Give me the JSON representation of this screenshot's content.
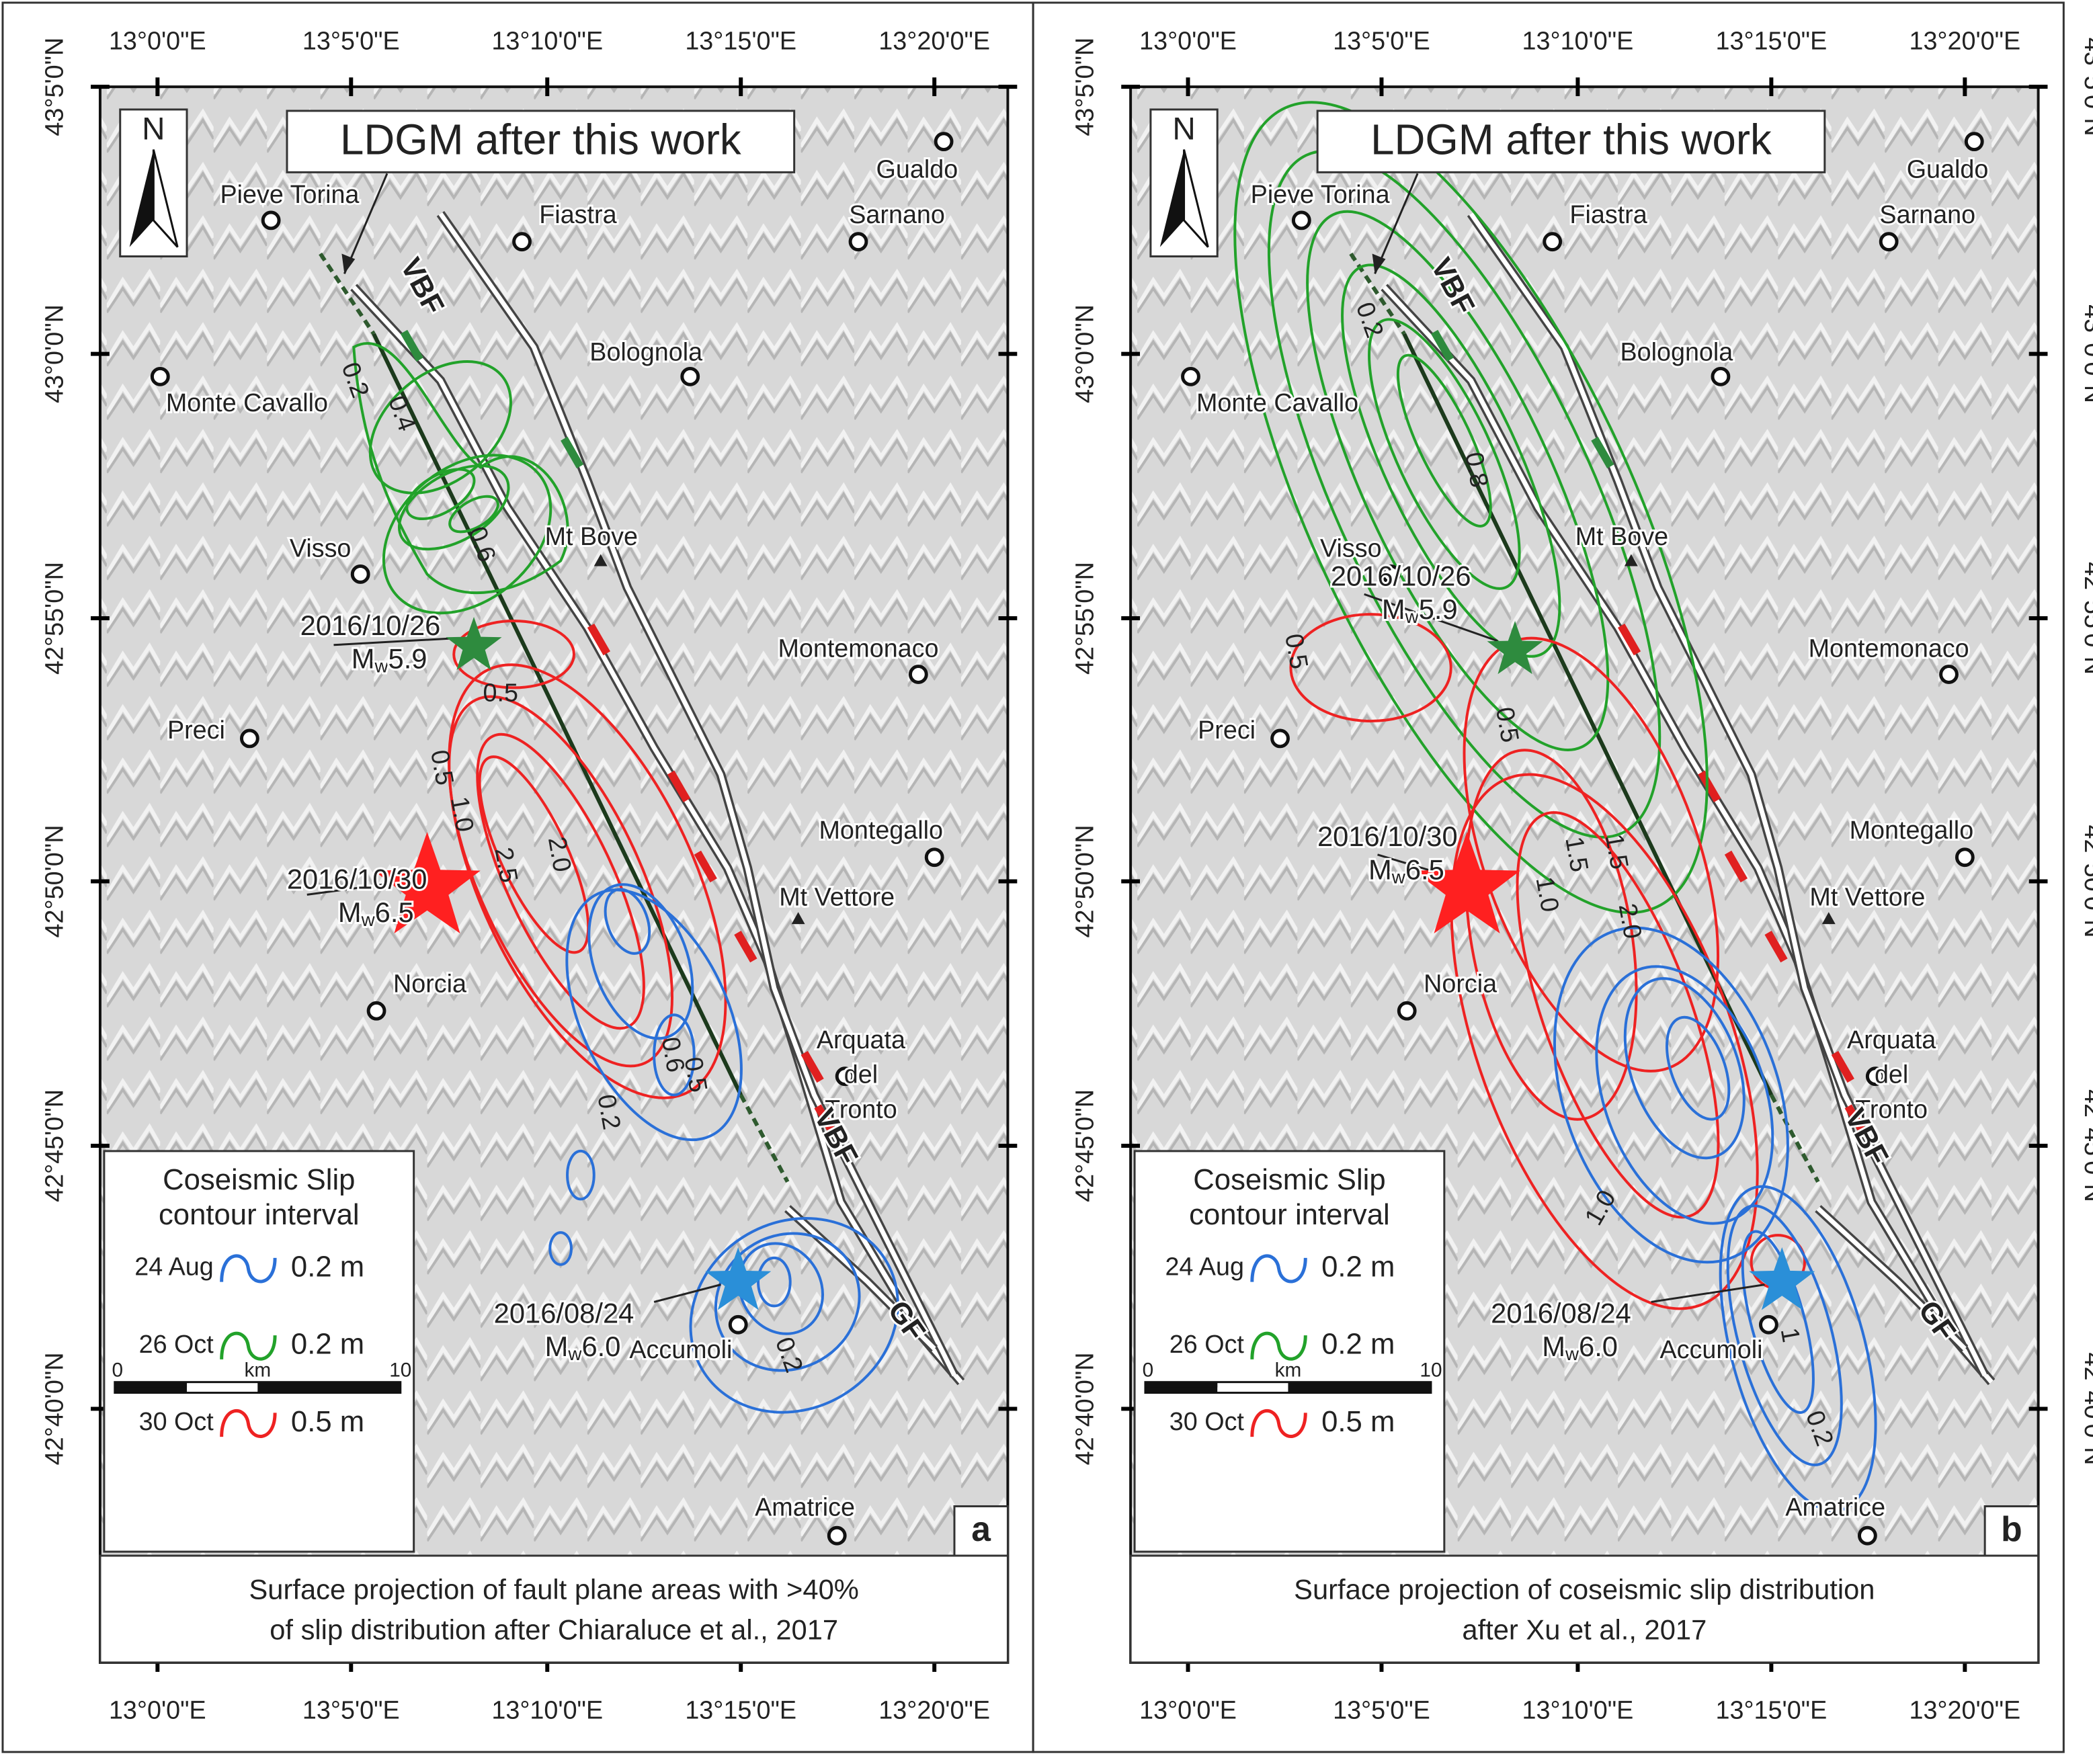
{
  "axes": {
    "lon_labels": [
      "13°0'0\"E",
      "13°5'0\"E",
      "13°10'0\"E",
      "13°15'0\"E",
      "13°20'0\"E"
    ],
    "lat_labels": [
      "43°5'0\"N",
      "43°0'0\"N",
      "42°55'0\"N",
      "42°50'0\"N",
      "42°45'0\"N",
      "42°40'0\"N"
    ]
  },
  "panels": [
    {
      "letter": "a",
      "title_box": "LDGM after this work",
      "north": "N",
      "places": [
        "Pieve Torina",
        "Fiastra",
        "Gualdo",
        "Sarnano",
        "Bolognola",
        "Monte Cavallo",
        "Visso",
        "Mt Bove",
        "Montemonaco",
        "Preci",
        "Montegallo",
        "Mt Vettore",
        "Norcia",
        "Amatrice",
        "Accumoli"
      ],
      "arquata": [
        "Arquata",
        "del",
        "Tronto"
      ],
      "faults": [
        "VBF",
        "VBF",
        "GF"
      ],
      "events": [
        {
          "date": "2016/10/26",
          "m": "M",
          "sub": "w",
          "mag": "5.9"
        },
        {
          "date": "2016/10/30",
          "m": "M",
          "sub": "w",
          "mag": "6.5"
        },
        {
          "date": "2016/08/24",
          "m": "M",
          "sub": "w",
          "mag": "6.0"
        }
      ],
      "contour_labels": [
        "0.2",
        "0.4",
        "0.6",
        "0.5",
        "0.5",
        "1.0",
        "2.5",
        "2.0",
        "0.6",
        "0.5",
        "0.2",
        "0.2"
      ],
      "legend": {
        "title": [
          "Coseismic Slip",
          "contour interval"
        ],
        "rows": [
          {
            "date": "24 Aug",
            "interval": "0.2 m"
          },
          {
            "date": "26 Oct",
            "interval": "0.2 m"
          },
          {
            "date": "30 Oct",
            "interval": "0.5 m"
          }
        ]
      },
      "scale": {
        "start": "0",
        "unit": "km",
        "end": "10"
      },
      "caption": [
        "Surface projection of fault plane areas with >40%",
        "of slip distribution after Chiaraluce et al., 2017"
      ]
    },
    {
      "letter": "b",
      "title_box": "LDGM after this work",
      "north": "N",
      "places": [
        "Pieve Torina",
        "Fiastra",
        "Gualdo",
        "Sarnano",
        "Bolognola",
        "Monte Cavallo",
        "Visso",
        "Mt Bove",
        "Montemonaco",
        "Preci",
        "Montegallo",
        "Mt Vettore",
        "Norcia",
        "Amatrice",
        "Accumoli"
      ],
      "arquata": [
        "Arquata",
        "del",
        "Tronto"
      ],
      "faults": [
        "VBF",
        "VBF",
        "GF"
      ],
      "events": [
        {
          "date": "2016/10/26",
          "m": "M",
          "sub": "w",
          "mag": "5.9"
        },
        {
          "date": "2016/10/30",
          "m": "M",
          "sub": "w",
          "mag": "6.5"
        },
        {
          "date": "2016/08/24",
          "m": "M",
          "sub": "w",
          "mag": "6.0"
        }
      ],
      "contour_labels": [
        "0.2",
        "0.8",
        "0.5",
        "0.5",
        "1.5",
        "1.0",
        "1.5",
        "2.0",
        "1.0",
        "1",
        "0.2"
      ],
      "legend": {
        "title": [
          "Coseismic Slip",
          "contour interval"
        ],
        "rows": [
          {
            "date": "24 Aug",
            "interval": "0.2 m"
          },
          {
            "date": "26 Oct",
            "interval": "0.2 m"
          },
          {
            "date": "30 Oct",
            "interval": "0.5 m"
          }
        ]
      },
      "scale": {
        "start": "0",
        "unit": "km",
        "end": "10"
      },
      "caption": [
        "Surface projection of coseismic slip distribution",
        "after Xu et al., 2017"
      ]
    }
  ]
}
